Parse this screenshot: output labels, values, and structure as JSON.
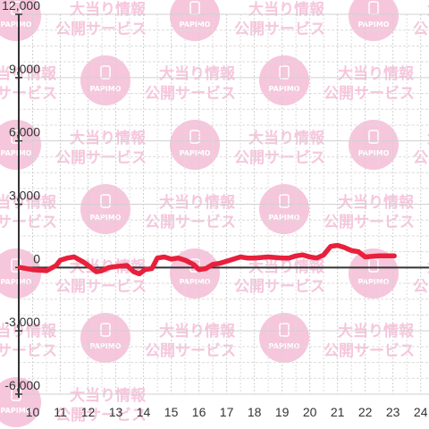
{
  "watermark": {
    "line1": "大当り情報",
    "line2": "公開サービス",
    "logo": "PAPIMO"
  },
  "chart_data": {
    "type": "line",
    "title": "",
    "xlabel": "",
    "ylabel": "",
    "xlim": [
      9.5,
      24.3
    ],
    "ylim": [
      -6000,
      12000
    ],
    "y_ticks": [
      -6000,
      -3000,
      0,
      3000,
      6000,
      9000,
      12000
    ],
    "y_tick_labels": [
      "-6,000",
      "-3,000",
      "0",
      "3,000",
      "6,000",
      "9,000",
      "12,000"
    ],
    "x_ticks": [
      10,
      11,
      12,
      13,
      14,
      15,
      16,
      17,
      18,
      19,
      20,
      21,
      22,
      23,
      24
    ],
    "x_tick_labels": [
      "10",
      "11",
      "12",
      "13",
      "14",
      "15",
      "16",
      "17",
      "18",
      "19",
      "20",
      "21",
      "22",
      "23",
      "24"
    ],
    "grid": true,
    "colors": {
      "line": "#e8203c",
      "axis": "#333333",
      "grid_major": "#d0d0d0",
      "grid_minor": "#dcdcdc"
    },
    "series": [
      {
        "values": [
          [
            9.55,
            0
          ],
          [
            10.0,
            -100
          ],
          [
            10.5,
            -150
          ],
          [
            10.85,
            100
          ],
          [
            11.0,
            350
          ],
          [
            11.25,
            450
          ],
          [
            11.5,
            500
          ],
          [
            11.85,
            250
          ],
          [
            12.1,
            0
          ],
          [
            12.3,
            -200
          ],
          [
            12.5,
            -150
          ],
          [
            12.75,
            0
          ],
          [
            13.0,
            50
          ],
          [
            13.4,
            100
          ],
          [
            13.65,
            -200
          ],
          [
            13.85,
            -300
          ],
          [
            14.05,
            -100
          ],
          [
            14.3,
            -50
          ],
          [
            14.5,
            450
          ],
          [
            14.75,
            500
          ],
          [
            15.0,
            400
          ],
          [
            15.25,
            450
          ],
          [
            15.5,
            350
          ],
          [
            15.8,
            150
          ],
          [
            16.0,
            -100
          ],
          [
            16.25,
            -50
          ],
          [
            16.5,
            150
          ],
          [
            16.75,
            200
          ],
          [
            17.0,
            300
          ],
          [
            17.25,
            400
          ],
          [
            17.5,
            500
          ],
          [
            17.75,
            450
          ],
          [
            18.0,
            450
          ],
          [
            18.5,
            500
          ],
          [
            19.0,
            450
          ],
          [
            19.25,
            450
          ],
          [
            19.5,
            550
          ],
          [
            19.75,
            600
          ],
          [
            20.0,
            500
          ],
          [
            20.25,
            450
          ],
          [
            20.5,
            600
          ],
          [
            20.75,
            1000
          ],
          [
            21.0,
            1050
          ],
          [
            21.25,
            950
          ],
          [
            21.5,
            800
          ],
          [
            21.75,
            750
          ],
          [
            22.0,
            500
          ],
          [
            22.5,
            550
          ],
          [
            23.0,
            550
          ],
          [
            23.05,
            550
          ]
        ]
      }
    ]
  }
}
